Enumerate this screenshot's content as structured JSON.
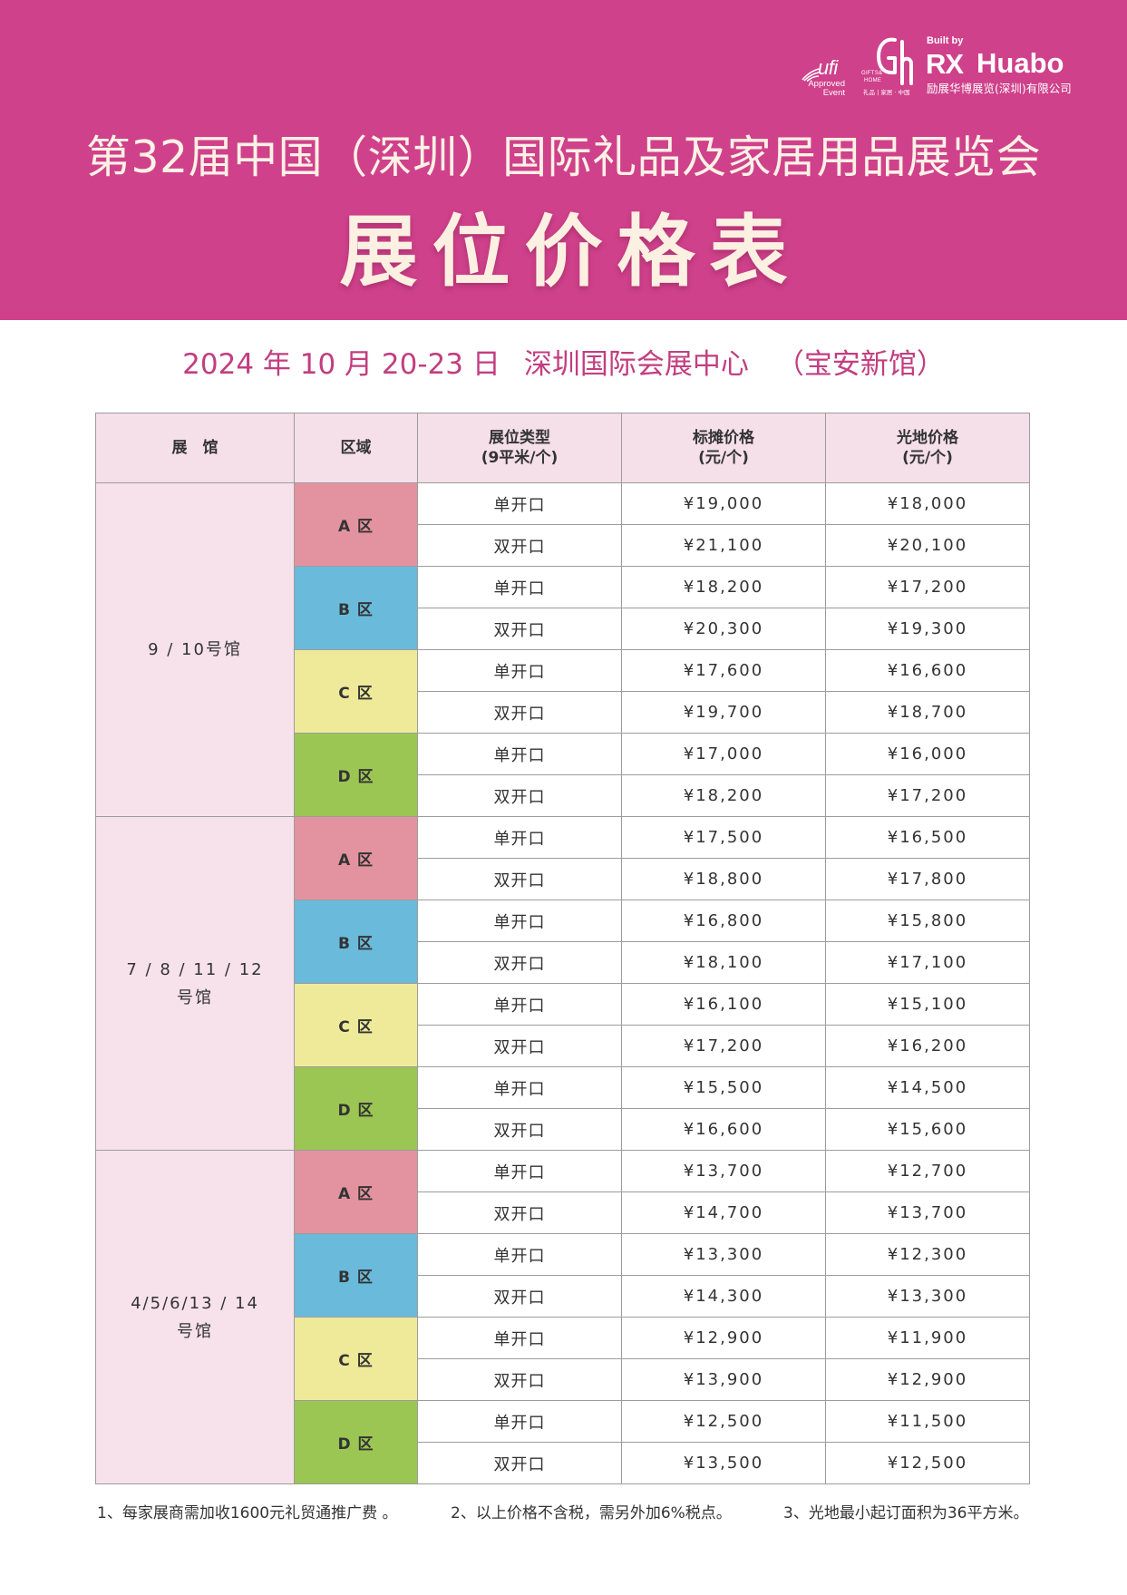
{
  "header": {
    "title": "第32届中国（深圳）国际礼品及家居用品展览会",
    "subtitle": "展位价格表",
    "band_color": "#CF418B",
    "logos": {
      "ufi": {
        "word": "ufi",
        "line1": "Approved",
        "line2": "Event"
      },
      "gifts_home": {
        "line1": "GIFTS&",
        "line2": "HOME",
        "cn": "礼品 | 家居 · 中国"
      },
      "organizer": {
        "built_by": "Built by",
        "rx": "RX",
        "name": "Huabo",
        "company": "励展华博展览(深圳)有限公司"
      }
    }
  },
  "event": {
    "date": "2024 年 10 月 20-23 日",
    "venue": "深圳国际会展中心",
    "venue_note": "（宝安新馆）"
  },
  "table": {
    "columns": [
      {
        "lines": [
          "展　馆"
        ]
      },
      {
        "lines": [
          "区域"
        ]
      },
      {
        "lines": [
          "展位类型",
          "(9平米/个)"
        ]
      },
      {
        "lines": [
          "标摊价格",
          "(元/个)"
        ]
      },
      {
        "lines": [
          "光地价格",
          "(元/个)"
        ]
      }
    ],
    "halls": [
      {
        "lines": [
          "9 / 10号馆"
        ],
        "zones": [
          {
            "label": "A 区",
            "color": "#E3939F",
            "rows": [
              {
                "type": "单开口",
                "standard": "¥19,000",
                "raw": "¥18,000"
              },
              {
                "type": "双开口",
                "standard": "¥21,100",
                "raw": "¥20,100"
              }
            ]
          },
          {
            "label": "B 区",
            "color": "#6ABADC",
            "rows": [
              {
                "type": "单开口",
                "standard": "¥18,200",
                "raw": "¥17,200"
              },
              {
                "type": "双开口",
                "standard": "¥20,300",
                "raw": "¥19,300"
              }
            ]
          },
          {
            "label": "C 区",
            "color": "#EEEA99",
            "rows": [
              {
                "type": "单开口",
                "standard": "¥17,600",
                "raw": "¥16,600"
              },
              {
                "type": "双开口",
                "standard": "¥19,700",
                "raw": "¥18,700"
              }
            ]
          },
          {
            "label": "D 区",
            "color": "#9BC653",
            "rows": [
              {
                "type": "单开口",
                "standard": "¥17,000",
                "raw": "¥16,000"
              },
              {
                "type": "双开口",
                "standard": "¥18,200",
                "raw": "¥17,200"
              }
            ]
          }
        ]
      },
      {
        "lines": [
          "7 / 8 / 11 / 12",
          "号馆"
        ],
        "zones": [
          {
            "label": "A 区",
            "color": "#E3939F",
            "rows": [
              {
                "type": "单开口",
                "standard": "¥17,500",
                "raw": "¥16,500"
              },
              {
                "type": "双开口",
                "standard": "¥18,800",
                "raw": "¥17,800"
              }
            ]
          },
          {
            "label": "B 区",
            "color": "#6ABADC",
            "rows": [
              {
                "type": "单开口",
                "standard": "¥16,800",
                "raw": "¥15,800"
              },
              {
                "type": "双开口",
                "standard": "¥18,100",
                "raw": "¥17,100"
              }
            ]
          },
          {
            "label": "C 区",
            "color": "#EEEA99",
            "rows": [
              {
                "type": "单开口",
                "standard": "¥16,100",
                "raw": "¥15,100"
              },
              {
                "type": "双开口",
                "standard": "¥17,200",
                "raw": "¥16,200"
              }
            ]
          },
          {
            "label": "D 区",
            "color": "#9BC653",
            "rows": [
              {
                "type": "单开口",
                "standard": "¥15,500",
                "raw": "¥14,500"
              },
              {
                "type": "双开口",
                "standard": "¥16,600",
                "raw": "¥15,600"
              }
            ]
          }
        ]
      },
      {
        "lines": [
          "4/5/6/13 / 14",
          "号馆"
        ],
        "zones": [
          {
            "label": "A 区",
            "color": "#E3939F",
            "rows": [
              {
                "type": "单开口",
                "standard": "¥13,700",
                "raw": "¥12,700"
              },
              {
                "type": "双开口",
                "standard": "¥14,700",
                "raw": "¥13,700"
              }
            ]
          },
          {
            "label": "B 区",
            "color": "#6ABADC",
            "rows": [
              {
                "type": "单开口",
                "standard": "¥13,300",
                "raw": "¥12,300"
              },
              {
                "type": "双开口",
                "standard": "¥14,300",
                "raw": "¥13,300"
              }
            ]
          },
          {
            "label": "C 区",
            "color": "#EEEA99",
            "rows": [
              {
                "type": "单开口",
                "standard": "¥12,900",
                "raw": "¥11,900"
              },
              {
                "type": "双开口",
                "standard": "¥13,900",
                "raw": "¥12,900"
              }
            ]
          },
          {
            "label": "D 区",
            "color": "#9BC653",
            "rows": [
              {
                "type": "单开口",
                "standard": "¥12,500",
                "raw": "¥11,500"
              },
              {
                "type": "双开口",
                "standard": "¥13,500",
                "raw": "¥12,500"
              }
            ]
          }
        ]
      }
    ]
  },
  "notes": [
    "1、每家展商需加收1600元礼贸通推广费 。",
    "2、以上价格不含税，需另外加6%税点。",
    "3、光地最小起订面积为36平方米。"
  ]
}
